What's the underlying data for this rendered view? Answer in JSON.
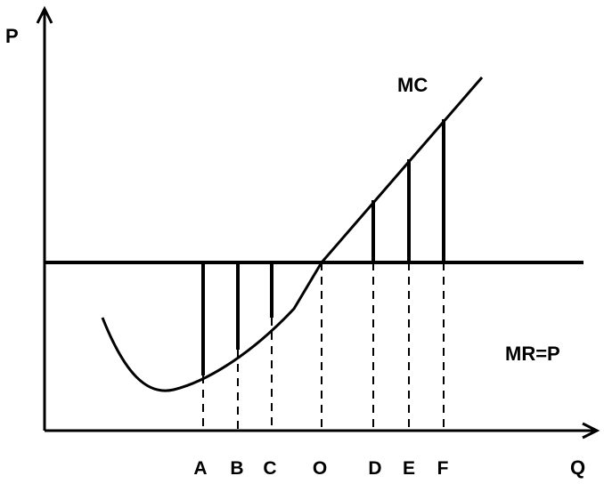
{
  "diagram": {
    "axis_labels": {
      "y": "P",
      "x": "Q"
    },
    "curve_labels": {
      "mc": "MC",
      "mr": "MR=P"
    },
    "quantity_labels": [
      "A",
      "B",
      "C",
      "O",
      "D",
      "E",
      "F"
    ],
    "colors": {
      "ink": "#000000",
      "background": "#ffffff"
    }
  }
}
